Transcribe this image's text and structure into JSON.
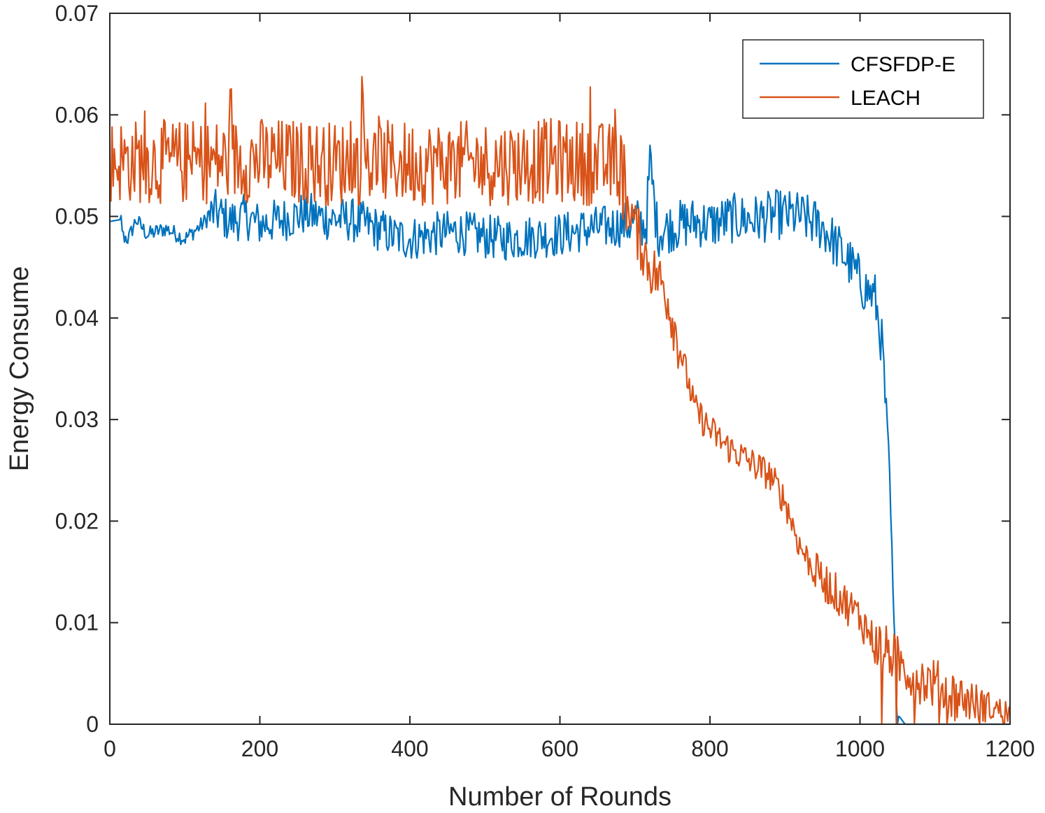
{
  "chart_data": {
    "type": "line",
    "title": "",
    "xlabel": "Number of Rounds",
    "ylabel": "Energy Consume",
    "xlim": [
      0,
      1200
    ],
    "ylim": [
      0,
      0.07
    ],
    "x_ticks": [
      0,
      200,
      400,
      600,
      800,
      1000,
      1200
    ],
    "x_tick_labels": [
      "0",
      "200",
      "400",
      "600",
      "800",
      "1000",
      "1200"
    ],
    "y_ticks": [
      0,
      0.01,
      0.02,
      0.03,
      0.04,
      0.05,
      0.06,
      0.07
    ],
    "y_tick_labels": [
      "0",
      "0.01",
      "0.02",
      "0.03",
      "0.04",
      "0.05",
      "0.06",
      "0.07"
    ],
    "grid": false,
    "legend_position": "top-right",
    "series": [
      {
        "name": "CFSFDP-E",
        "color": "#0072BD",
        "points": [
          [
            0,
            0.0495
          ],
          [
            15,
            0.0497
          ],
          [
            18,
            0.048
          ],
          [
            25,
            0.0478
          ],
          [
            35,
            0.0497
          ],
          [
            50,
            0.0482
          ],
          [
            75,
            0.0488
          ],
          [
            100,
            0.0478
          ],
          [
            120,
            0.049
          ],
          [
            140,
            0.0505
          ],
          [
            160,
            0.0495
          ],
          [
            180,
            0.05
          ],
          [
            200,
            0.0492
          ],
          [
            230,
            0.0497
          ],
          [
            260,
            0.0503
          ],
          [
            290,
            0.0498
          ],
          [
            320,
            0.0497
          ],
          [
            350,
            0.049
          ],
          [
            380,
            0.048
          ],
          [
            400,
            0.0478
          ],
          [
            430,
            0.0482
          ],
          [
            460,
            0.0485
          ],
          [
            500,
            0.048
          ],
          [
            530,
            0.0478
          ],
          [
            560,
            0.048
          ],
          [
            600,
            0.0482
          ],
          [
            640,
            0.0488
          ],
          [
            670,
            0.049
          ],
          [
            700,
            0.0495
          ],
          [
            715,
            0.049
          ],
          [
            720,
            0.0555
          ],
          [
            730,
            0.0485
          ],
          [
            750,
            0.049
          ],
          [
            780,
            0.0495
          ],
          [
            800,
            0.0492
          ],
          [
            830,
            0.0498
          ],
          [
            860,
            0.0497
          ],
          [
            890,
            0.0502
          ],
          [
            920,
            0.05
          ],
          [
            950,
            0.049
          ],
          [
            970,
            0.047
          ],
          [
            990,
            0.045
          ],
          [
            1005,
            0.043
          ],
          [
            1020,
            0.042
          ],
          [
            1030,
            0.037
          ],
          [
            1035,
            0.03
          ],
          [
            1040,
            0.023
          ],
          [
            1045,
            0.01
          ],
          [
            1050,
            0.001
          ],
          [
            1060,
            0.0
          ],
          [
            1200,
            0.0
          ]
        ]
      },
      {
        "name": "LEACH",
        "color": "#D95319",
        "points": [
          [
            0,
            0.0555
          ],
          [
            100,
            0.0553
          ],
          [
            200,
            0.0556
          ],
          [
            300,
            0.0552
          ],
          [
            400,
            0.0553
          ],
          [
            500,
            0.0552
          ],
          [
            600,
            0.0555
          ],
          [
            680,
            0.055
          ],
          [
            700,
            0.049
          ],
          [
            720,
            0.045
          ],
          [
            740,
            0.043
          ],
          [
            760,
            0.037
          ],
          [
            780,
            0.031
          ],
          [
            800,
            0.029
          ],
          [
            820,
            0.0275
          ],
          [
            840,
            0.0265
          ],
          [
            860,
            0.0255
          ],
          [
            880,
            0.0245
          ],
          [
            900,
            0.022
          ],
          [
            920,
            0.0175
          ],
          [
            940,
            0.015
          ],
          [
            960,
            0.0135
          ],
          [
            980,
            0.012
          ],
          [
            1000,
            0.0105
          ],
          [
            1020,
            0.008
          ],
          [
            1040,
            0.007
          ],
          [
            1060,
            0.0055
          ],
          [
            1080,
            0.0045
          ],
          [
            1100,
            0.004
          ],
          [
            1120,
            0.003
          ],
          [
            1140,
            0.0025
          ],
          [
            1160,
            0.002
          ],
          [
            1180,
            0.0015
          ],
          [
            1200,
            0.0012
          ]
        ]
      }
    ]
  }
}
